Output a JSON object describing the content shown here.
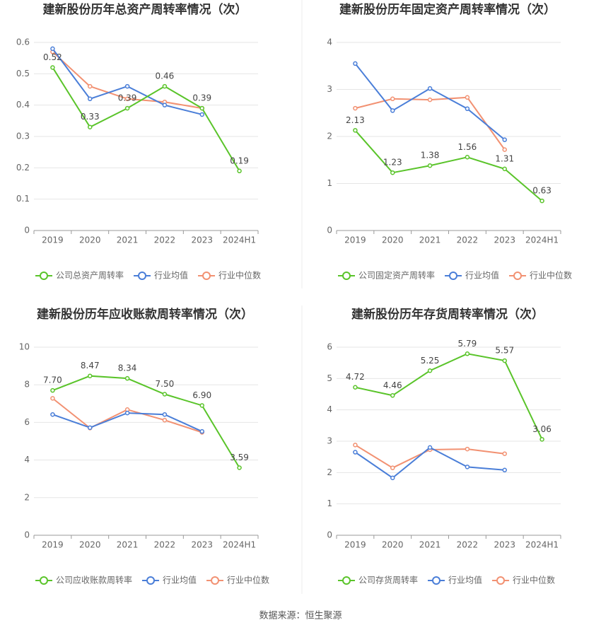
{
  "chart_data": [
    {
      "type": "line",
      "title": "建新股份历年总资产周转率情况（次）",
      "categories": [
        "2019",
        "2020",
        "2021",
        "2022",
        "2023",
        "2024H1"
      ],
      "ylim": [
        0,
        0.6
      ],
      "yticks": [
        0,
        0.1,
        0.2,
        0.3,
        0.4,
        0.5,
        0.6
      ],
      "grid": true,
      "series": [
        {
          "name": "公司总资产周转率",
          "color": "#5ac42a",
          "values": [
            0.52,
            0.33,
            0.39,
            0.46,
            0.39,
            0.19
          ]
        },
        {
          "name": "行业均值",
          "color": "#4a7ed8",
          "values": [
            0.58,
            0.42,
            0.46,
            0.4,
            0.37,
            null
          ]
        },
        {
          "name": "行业中位数",
          "color": "#f29172",
          "values": [
            0.57,
            0.46,
            0.42,
            0.41,
            0.39,
            null
          ]
        }
      ]
    },
    {
      "type": "line",
      "title": "建新股份历年固定资产周转率情况（次）",
      "categories": [
        "2019",
        "2020",
        "2021",
        "2022",
        "2023",
        "2024H1"
      ],
      "ylim": [
        0,
        4
      ],
      "yticks": [
        0,
        1,
        2,
        3,
        4
      ],
      "grid": true,
      "series": [
        {
          "name": "公司固定资产周转率",
          "color": "#5ac42a",
          "values": [
            2.13,
            1.23,
            1.38,
            1.56,
            1.31,
            0.63
          ]
        },
        {
          "name": "行业均值",
          "color": "#4a7ed8",
          "values": [
            3.55,
            2.55,
            3.02,
            2.59,
            1.93,
            null
          ]
        },
        {
          "name": "行业中位数",
          "color": "#f29172",
          "values": [
            2.6,
            2.8,
            2.78,
            2.83,
            1.72,
            null
          ]
        }
      ]
    },
    {
      "type": "line",
      "title": "建新股份历年应收账款周转率情况（次）",
      "categories": [
        "2019",
        "2020",
        "2021",
        "2022",
        "2023",
        "2024H1"
      ],
      "ylim": [
        0,
        10
      ],
      "yticks": [
        0,
        2,
        4,
        6,
        8,
        10
      ],
      "grid": true,
      "series": [
        {
          "name": "公司应收账款周转率",
          "color": "#5ac42a",
          "values": [
            7.7,
            8.47,
            8.34,
            7.5,
            6.9,
            3.59
          ],
          "value_labels": [
            "7.70",
            "8.47",
            "8.34",
            "7.50",
            "6.90",
            "3.59"
          ]
        },
        {
          "name": "行业均值",
          "color": "#4a7ed8",
          "values": [
            6.42,
            5.72,
            6.5,
            6.42,
            5.52,
            null
          ]
        },
        {
          "name": "行业中位数",
          "color": "#f29172",
          "values": [
            7.28,
            5.7,
            6.68,
            6.12,
            5.47,
            null
          ]
        }
      ]
    },
    {
      "type": "line",
      "title": "建新股份历年存货周转率情况（次）",
      "categories": [
        "2019",
        "2020",
        "2021",
        "2022",
        "2023",
        "2024H1"
      ],
      "ylim": [
        0,
        6
      ],
      "yticks": [
        0,
        1,
        2,
        3,
        4,
        5,
        6
      ],
      "grid": true,
      "series": [
        {
          "name": "公司存货周转率",
          "color": "#5ac42a",
          "values": [
            4.72,
            4.46,
            5.25,
            5.79,
            5.57,
            3.06
          ]
        },
        {
          "name": "行业均值",
          "color": "#4a7ed8",
          "values": [
            2.65,
            1.83,
            2.8,
            2.18,
            2.08,
            null
          ]
        },
        {
          "name": "行业中位数",
          "color": "#f29172",
          "values": [
            2.88,
            2.15,
            2.73,
            2.75,
            2.6,
            null
          ]
        }
      ]
    }
  ],
  "source": "数据来源：恒生聚源"
}
